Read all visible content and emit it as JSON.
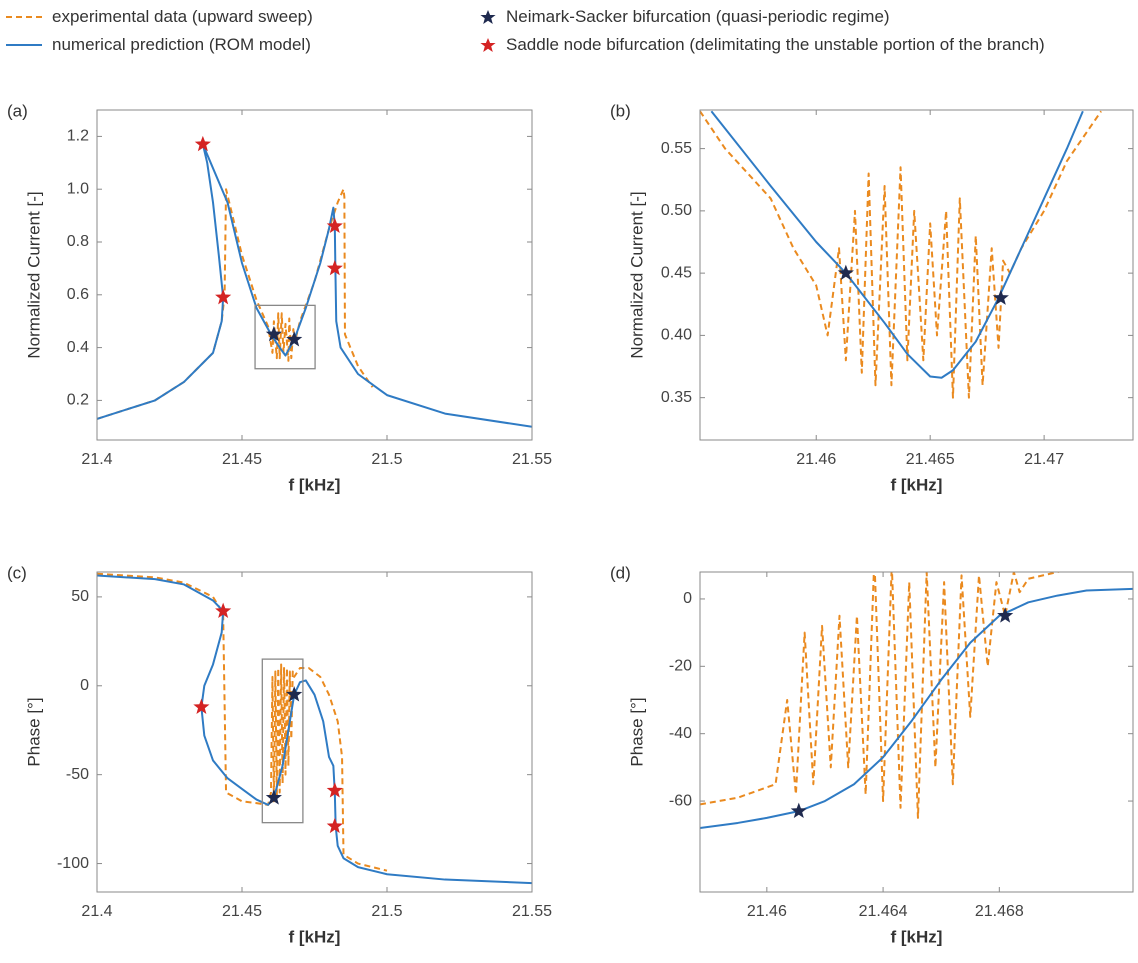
{
  "chart_data": [
    {
      "type": "line",
      "label": "(a)",
      "xlabel": "f [kHz]",
      "ylabel": "Normalized Current [-]",
      "xlim": [
        21.4,
        21.55
      ],
      "ylim": [
        0.05,
        1.3
      ],
      "xticks": [
        21.4,
        21.45,
        21.5,
        21.55
      ],
      "yticks": [
        0.2,
        0.4,
        0.6,
        0.8,
        {
          "value": 1,
          "label": "1.0"
        },
        1.2
      ],
      "zoom_box": {
        "x": [
          21.4545,
          21.4752
        ],
        "y": [
          0.32,
          0.56
        ]
      },
      "series": [
        {
          "name": "experimental data (upward sweep)",
          "color": "#ea8a1f",
          "style": "dashed",
          "x": [
            21.4,
            21.42,
            21.43,
            21.44,
            21.443,
            21.444,
            21.4445,
            21.45,
            21.455,
            21.459,
            21.4605,
            21.461,
            21.462,
            21.4625,
            21.463,
            21.4637,
            21.4643,
            21.465,
            21.466,
            21.4663,
            21.467,
            21.4677,
            21.4682,
            21.47,
            21.475,
            21.48,
            21.483,
            21.485,
            21.4853,
            21.4855,
            21.49,
            21.495
          ],
          "values": [
            0.13,
            0.2,
            0.27,
            0.38,
            0.5,
            0.6,
            1.0,
            0.75,
            0.58,
            0.48,
            0.38,
            0.5,
            0.36,
            0.53,
            0.36,
            0.53,
            0.38,
            0.49,
            0.35,
            0.51,
            0.36,
            0.47,
            0.42,
            0.5,
            0.65,
            0.85,
            0.95,
            1.0,
            0.97,
            0.45,
            0.33,
            0.25
          ]
        },
        {
          "name": "numerical prediction (ROM model)",
          "color": "#2f7bc4",
          "style": "solid",
          "x": [
            21.4,
            21.42,
            21.43,
            21.44,
            21.443,
            21.4435,
            21.442,
            21.44,
            21.438,
            21.4365,
            21.445,
            21.45,
            21.455,
            21.46,
            21.463,
            21.465,
            21.468,
            21.472,
            21.477,
            21.48,
            21.4815,
            21.482,
            21.4822,
            21.4825,
            21.484,
            21.49,
            21.5,
            21.52,
            21.55
          ],
          "values": [
            0.13,
            0.2,
            0.27,
            0.38,
            0.5,
            0.59,
            0.75,
            0.95,
            1.1,
            1.17,
            0.95,
            0.72,
            0.55,
            0.45,
            0.4,
            0.37,
            0.43,
            0.55,
            0.72,
            0.85,
            0.93,
            0.86,
            0.7,
            0.5,
            0.4,
            0.3,
            0.22,
            0.15,
            0.1
          ]
        },
        {
          "name": "Neimark-Sacker bifurcation (quasi-periodic regime)",
          "color": "#1f2a4f",
          "marker": "star",
          "x": [
            21.461,
            21.468
          ],
          "values": [
            0.45,
            0.43
          ]
        },
        {
          "name": "Saddle node bifurcation (delimitating the unstable portion of the branch)",
          "color": "#d42323",
          "marker": "star",
          "x": [
            21.4365,
            21.4435,
            21.482,
            21.482
          ],
          "values": [
            1.17,
            0.59,
            0.86,
            0.7
          ]
        }
      ]
    },
    {
      "type": "line",
      "label": "(b)",
      "xlabel": "f [kHz]",
      "ylabel": "Normalized Current [-]",
      "xlim": [
        21.4549,
        21.4739
      ],
      "ylim": [
        0.316,
        0.581
      ],
      "xticks": [
        21.46,
        21.465,
        21.47
      ],
      "yticks": [
        0.35,
        {
          "value": 0.4,
          "label": "0.40"
        },
        0.45,
        {
          "value": 0.5,
          "label": "0.50"
        },
        0.55
      ],
      "series": [
        {
          "color": "#ea8a1f",
          "style": "dashed",
          "x": [
            21.4549,
            21.456,
            21.458,
            21.459,
            21.46,
            21.4605,
            21.461,
            21.4613,
            21.4617,
            21.462,
            21.4623,
            21.4626,
            21.463,
            21.4633,
            21.4637,
            21.464,
            21.4643,
            21.4647,
            21.465,
            21.4653,
            21.4657,
            21.466,
            21.4663,
            21.4667,
            21.467,
            21.4673,
            21.4677,
            21.468,
            21.4682,
            21.4685,
            21.469,
            21.47,
            21.471,
            21.4725
          ],
          "values": [
            0.58,
            0.55,
            0.51,
            0.47,
            0.44,
            0.4,
            0.47,
            0.38,
            0.5,
            0.37,
            0.53,
            0.36,
            0.52,
            0.36,
            0.535,
            0.38,
            0.5,
            0.38,
            0.49,
            0.4,
            0.5,
            0.35,
            0.51,
            0.35,
            0.48,
            0.36,
            0.47,
            0.39,
            0.46,
            0.45,
            0.47,
            0.5,
            0.54,
            0.58
          ]
        },
        {
          "color": "#2f7bc4",
          "style": "solid",
          "x": [
            21.4554,
            21.458,
            21.46,
            21.4613,
            21.463,
            21.464,
            21.465,
            21.4655,
            21.466,
            21.467,
            21.468,
            21.469,
            21.47,
            21.471,
            21.4717
          ],
          "values": [
            0.58,
            0.52,
            0.475,
            0.45,
            0.41,
            0.385,
            0.367,
            0.366,
            0.372,
            0.395,
            0.43,
            0.47,
            0.51,
            0.55,
            0.58
          ]
        },
        {
          "color": "#1f2a4f",
          "marker": "star",
          "x": [
            21.4613,
            21.4681
          ],
          "values": [
            0.45,
            0.43
          ]
        }
      ]
    },
    {
      "type": "line",
      "label": "(c)",
      "xlabel": "f [kHz]",
      "ylabel": "Phase [°]",
      "xlim": [
        21.4,
        21.55
      ],
      "ylim": [
        -116,
        64
      ],
      "xticks": [
        21.4,
        21.45,
        21.5,
        21.55
      ],
      "yticks": [
        -100,
        -50,
        0,
        50
      ],
      "zoom_box": {
        "x": [
          21.457,
          21.471
        ],
        "y": [
          -77,
          15
        ]
      },
      "series": [
        {
          "color": "#ea8a1f",
          "style": "dashed",
          "x": [
            21.4,
            21.42,
            21.43,
            21.44,
            21.443,
            21.4435,
            21.444,
            21.4445,
            21.45,
            21.455,
            21.459,
            21.46,
            21.4605,
            21.461,
            21.4615,
            21.462,
            21.4625,
            21.463,
            21.4635,
            21.464,
            21.4645,
            21.465,
            21.4655,
            21.466,
            21.4665,
            21.467,
            21.4675,
            21.468,
            21.47,
            21.473,
            21.477,
            21.48,
            21.483,
            21.4845,
            21.485,
            21.49,
            21.5
          ],
          "values": [
            63,
            61,
            58,
            50,
            42,
            40,
            -10,
            -60,
            -65,
            -66,
            -67,
            -60,
            5,
            -65,
            8,
            -62,
            10,
            -60,
            12,
            -55,
            10,
            -50,
            10,
            -45,
            8,
            -30,
            8,
            5,
            10,
            10,
            5,
            -5,
            -20,
            -40,
            -95,
            -100,
            -104
          ]
        },
        {
          "color": "#2f7bc4",
          "style": "solid",
          "x": [
            21.4,
            21.42,
            21.43,
            21.44,
            21.4435,
            21.443,
            21.44,
            21.437,
            21.436,
            21.437,
            21.44,
            21.445,
            21.45,
            21.455,
            21.459,
            21.461,
            21.464,
            21.466,
            21.468,
            21.47,
            21.472,
            21.475,
            21.478,
            21.48,
            21.4815,
            21.482,
            21.4823,
            21.483,
            21.485,
            21.49,
            21.5,
            21.52,
            21.55
          ],
          "values": [
            62,
            60,
            57,
            48,
            42,
            30,
            12,
            0,
            -12,
            -28,
            -42,
            -52,
            -58,
            -64,
            -67,
            -63,
            -45,
            -25,
            -5,
            2,
            3,
            -5,
            -20,
            -40,
            -45,
            -60,
            -79,
            -90,
            -97,
            -102,
            -106,
            -109,
            -111
          ]
        },
        {
          "color": "#1f2a4f",
          "marker": "star",
          "x": [
            21.461,
            21.468
          ],
          "values": [
            -63,
            -5
          ]
        },
        {
          "color": "#d42323",
          "marker": "star",
          "x": [
            21.4435,
            21.436,
            21.482,
            21.482
          ],
          "values": [
            42,
            -12,
            -59,
            -79
          ]
        }
      ]
    },
    {
      "type": "line",
      "label": "(d)",
      "xlabel": "f [kHz]",
      "ylabel": "Phase [°]",
      "xlim": [
        21.4577,
        21.4726
      ],
      "ylim": [
        -87,
        8
      ],
      "xticks": [
        21.46,
        21.464,
        21.468
      ],
      "yticks": [
        -60,
        -40,
        -20,
        0
      ],
      "series": [
        {
          "color": "#ea8a1f",
          "style": "dashed",
          "x": [
            21.4577,
            21.459,
            21.4603,
            21.4607,
            21.461,
            21.4613,
            21.4616,
            21.4619,
            21.4622,
            21.4625,
            21.4628,
            21.4631,
            21.4634,
            21.4637,
            21.464,
            21.4643,
            21.4646,
            21.4649,
            21.4652,
            21.4655,
            21.4658,
            21.4661,
            21.4664,
            21.4667,
            21.467,
            21.4673,
            21.4676,
            21.4679,
            21.4682,
            21.4685,
            21.4687,
            21.469,
            21.47,
            21.471,
            21.4726
          ],
          "values": [
            -61,
            -59,
            -55,
            -30,
            -58,
            -10,
            -55,
            -8,
            -50,
            -5,
            -50,
            -5,
            -58,
            12,
            -60,
            10,
            -62,
            5,
            -65,
            8,
            -50,
            5,
            -55,
            7,
            -35,
            7,
            -20,
            5,
            -5,
            8,
            2,
            6,
            8,
            10,
            11
          ]
        },
        {
          "color": "#2f7bc4",
          "style": "solid",
          "x": [
            21.4577,
            21.459,
            21.46,
            21.4611,
            21.462,
            21.463,
            21.464,
            21.465,
            21.466,
            21.467,
            21.468,
            21.469,
            21.47,
            21.471,
            21.4726
          ],
          "values": [
            -68,
            -66.5,
            -65,
            -63,
            -60,
            -55,
            -47,
            -36,
            -24,
            -13,
            -5,
            -1,
            1,
            2.5,
            3
          ]
        },
        {
          "color": "#1f2a4f",
          "marker": "star",
          "x": [
            21.4611,
            21.4682
          ],
          "values": [
            -63,
            -5
          ]
        }
      ]
    }
  ]
}
